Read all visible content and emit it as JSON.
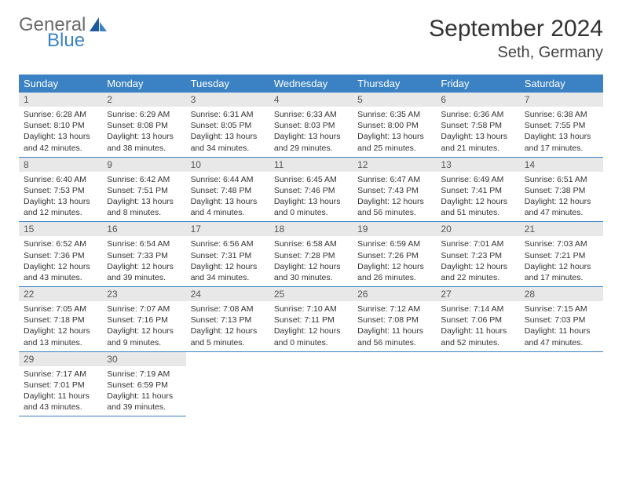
{
  "brand": {
    "part1": "General",
    "part2": "Blue"
  },
  "title": "September 2024",
  "location": "Seth, Germany",
  "colors": {
    "header_bg": "#3b82c4",
    "header_fg": "#ffffff",
    "daynum_bg": "#e8e8e8",
    "border": "#3b82c4",
    "text": "#333333"
  },
  "day_names": [
    "Sunday",
    "Monday",
    "Tuesday",
    "Wednesday",
    "Thursday",
    "Friday",
    "Saturday"
  ],
  "weeks": [
    [
      {
        "n": "1",
        "sr": "Sunrise: 6:28 AM",
        "ss": "Sunset: 8:10 PM",
        "dl": "Daylight: 13 hours and 42 minutes."
      },
      {
        "n": "2",
        "sr": "Sunrise: 6:29 AM",
        "ss": "Sunset: 8:08 PM",
        "dl": "Daylight: 13 hours and 38 minutes."
      },
      {
        "n": "3",
        "sr": "Sunrise: 6:31 AM",
        "ss": "Sunset: 8:05 PM",
        "dl": "Daylight: 13 hours and 34 minutes."
      },
      {
        "n": "4",
        "sr": "Sunrise: 6:33 AM",
        "ss": "Sunset: 8:03 PM",
        "dl": "Daylight: 13 hours and 29 minutes."
      },
      {
        "n": "5",
        "sr": "Sunrise: 6:35 AM",
        "ss": "Sunset: 8:00 PM",
        "dl": "Daylight: 13 hours and 25 minutes."
      },
      {
        "n": "6",
        "sr": "Sunrise: 6:36 AM",
        "ss": "Sunset: 7:58 PM",
        "dl": "Daylight: 13 hours and 21 minutes."
      },
      {
        "n": "7",
        "sr": "Sunrise: 6:38 AM",
        "ss": "Sunset: 7:55 PM",
        "dl": "Daylight: 13 hours and 17 minutes."
      }
    ],
    [
      {
        "n": "8",
        "sr": "Sunrise: 6:40 AM",
        "ss": "Sunset: 7:53 PM",
        "dl": "Daylight: 13 hours and 12 minutes."
      },
      {
        "n": "9",
        "sr": "Sunrise: 6:42 AM",
        "ss": "Sunset: 7:51 PM",
        "dl": "Daylight: 13 hours and 8 minutes."
      },
      {
        "n": "10",
        "sr": "Sunrise: 6:44 AM",
        "ss": "Sunset: 7:48 PM",
        "dl": "Daylight: 13 hours and 4 minutes."
      },
      {
        "n": "11",
        "sr": "Sunrise: 6:45 AM",
        "ss": "Sunset: 7:46 PM",
        "dl": "Daylight: 13 hours and 0 minutes."
      },
      {
        "n": "12",
        "sr": "Sunrise: 6:47 AM",
        "ss": "Sunset: 7:43 PM",
        "dl": "Daylight: 12 hours and 56 minutes."
      },
      {
        "n": "13",
        "sr": "Sunrise: 6:49 AM",
        "ss": "Sunset: 7:41 PM",
        "dl": "Daylight: 12 hours and 51 minutes."
      },
      {
        "n": "14",
        "sr": "Sunrise: 6:51 AM",
        "ss": "Sunset: 7:38 PM",
        "dl": "Daylight: 12 hours and 47 minutes."
      }
    ],
    [
      {
        "n": "15",
        "sr": "Sunrise: 6:52 AM",
        "ss": "Sunset: 7:36 PM",
        "dl": "Daylight: 12 hours and 43 minutes."
      },
      {
        "n": "16",
        "sr": "Sunrise: 6:54 AM",
        "ss": "Sunset: 7:33 PM",
        "dl": "Daylight: 12 hours and 39 minutes."
      },
      {
        "n": "17",
        "sr": "Sunrise: 6:56 AM",
        "ss": "Sunset: 7:31 PM",
        "dl": "Daylight: 12 hours and 34 minutes."
      },
      {
        "n": "18",
        "sr": "Sunrise: 6:58 AM",
        "ss": "Sunset: 7:28 PM",
        "dl": "Daylight: 12 hours and 30 minutes."
      },
      {
        "n": "19",
        "sr": "Sunrise: 6:59 AM",
        "ss": "Sunset: 7:26 PM",
        "dl": "Daylight: 12 hours and 26 minutes."
      },
      {
        "n": "20",
        "sr": "Sunrise: 7:01 AM",
        "ss": "Sunset: 7:23 PM",
        "dl": "Daylight: 12 hours and 22 minutes."
      },
      {
        "n": "21",
        "sr": "Sunrise: 7:03 AM",
        "ss": "Sunset: 7:21 PM",
        "dl": "Daylight: 12 hours and 17 minutes."
      }
    ],
    [
      {
        "n": "22",
        "sr": "Sunrise: 7:05 AM",
        "ss": "Sunset: 7:18 PM",
        "dl": "Daylight: 12 hours and 13 minutes."
      },
      {
        "n": "23",
        "sr": "Sunrise: 7:07 AM",
        "ss": "Sunset: 7:16 PM",
        "dl": "Daylight: 12 hours and 9 minutes."
      },
      {
        "n": "24",
        "sr": "Sunrise: 7:08 AM",
        "ss": "Sunset: 7:13 PM",
        "dl": "Daylight: 12 hours and 5 minutes."
      },
      {
        "n": "25",
        "sr": "Sunrise: 7:10 AM",
        "ss": "Sunset: 7:11 PM",
        "dl": "Daylight: 12 hours and 0 minutes."
      },
      {
        "n": "26",
        "sr": "Sunrise: 7:12 AM",
        "ss": "Sunset: 7:08 PM",
        "dl": "Daylight: 11 hours and 56 minutes."
      },
      {
        "n": "27",
        "sr": "Sunrise: 7:14 AM",
        "ss": "Sunset: 7:06 PM",
        "dl": "Daylight: 11 hours and 52 minutes."
      },
      {
        "n": "28",
        "sr": "Sunrise: 7:15 AM",
        "ss": "Sunset: 7:03 PM",
        "dl": "Daylight: 11 hours and 47 minutes."
      }
    ],
    [
      {
        "n": "29",
        "sr": "Sunrise: 7:17 AM",
        "ss": "Sunset: 7:01 PM",
        "dl": "Daylight: 11 hours and 43 minutes."
      },
      {
        "n": "30",
        "sr": "Sunrise: 7:19 AM",
        "ss": "Sunset: 6:59 PM",
        "dl": "Daylight: 11 hours and 39 minutes."
      },
      null,
      null,
      null,
      null,
      null
    ]
  ]
}
